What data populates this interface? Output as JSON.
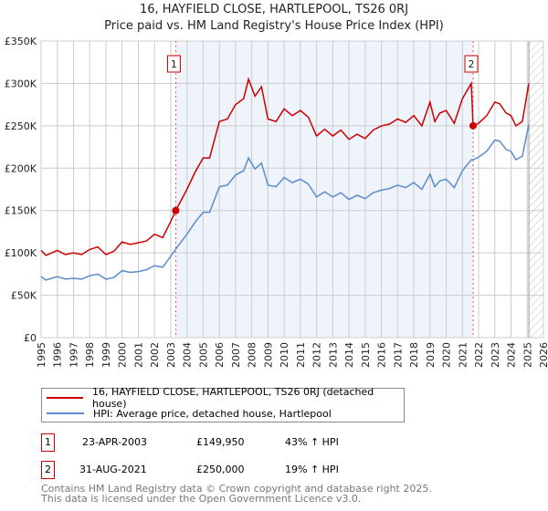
{
  "chart_data": {
    "type": "line",
    "title": "16, HAYFIELD CLOSE, HARTLEPOOL, TS26 0RJ",
    "subtitle": "Price paid vs. HM Land Registry's House Price Index (HPI)",
    "xlim": [
      1995,
      2026
    ],
    "ylim": [
      0,
      350000
    ],
    "y_ticks": [
      {
        "v": 0,
        "label": "£0"
      },
      {
        "v": 50000,
        "label": "£50K"
      },
      {
        "v": 100000,
        "label": "£100K"
      },
      {
        "v": 150000,
        "label": "£150K"
      },
      {
        "v": 200000,
        "label": "£200K"
      },
      {
        "v": 250000,
        "label": "£250K"
      },
      {
        "v": 300000,
        "label": "£300K"
      },
      {
        "v": 350000,
        "label": "£350K"
      }
    ],
    "x_ticks": [
      "1995",
      "1996",
      "1997",
      "1998",
      "1999",
      "2000",
      "2001",
      "2002",
      "2003",
      "2004",
      "2005",
      "2006",
      "2007",
      "2008",
      "2009",
      "2010",
      "2011",
      "2012",
      "2013",
      "2014",
      "2015",
      "2016",
      "2017",
      "2018",
      "2019",
      "2020",
      "2021",
      "2022",
      "2023",
      "2024",
      "2025",
      "2026"
    ],
    "grid": true,
    "shaded_range": [
      2003.31,
      2021.66
    ],
    "forecast_hatch_from": 2025.1,
    "series": [
      {
        "name": "16, HAYFIELD CLOSE, HARTLEPOOL, TS26 0RJ (detached house)",
        "color": "#cc0000",
        "x": [
          1995,
          1995.3,
          1996,
          1996.5,
          1997,
          1997.5,
          1998,
          1998.5,
          1999,
          1999.5,
          2000,
          2000.5,
          2001,
          2001.5,
          2002,
          2002.5,
          2003,
          2003.31,
          2003.31,
          2004,
          2004.5,
          2005,
          2005.4,
          2006,
          2006.5,
          2007,
          2007.5,
          2007.8,
          2008.2,
          2008.6,
          2009,
          2009.5,
          2010,
          2010.5,
          2011,
          2011.5,
          2012,
          2012.5,
          2013,
          2013.5,
          2014,
          2014.5,
          2015,
          2015.5,
          2016,
          2016.5,
          2017,
          2017.5,
          2018,
          2018.5,
          2019,
          2019.3,
          2019.6,
          2020,
          2020.5,
          2021,
          2021.55,
          2021.66,
          2022,
          2022.5,
          2023,
          2023.3,
          2023.7,
          2024,
          2024.3,
          2024.7,
          2025.1
        ],
        "y": [
          103000,
          97000,
          103000,
          98000,
          100000,
          98000,
          104000,
          107000,
          98000,
          102000,
          113000,
          110000,
          112000,
          114000,
          122000,
          118000,
          137000,
          149950,
          149950,
          175000,
          195000,
          212000,
          212000,
          255000,
          258000,
          275000,
          282000,
          305000,
          285000,
          296000,
          258000,
          255000,
          270000,
          262000,
          268000,
          260000,
          238000,
          246000,
          238000,
          245000,
          234000,
          240000,
          235000,
          245000,
          250000,
          252000,
          258000,
          254000,
          262000,
          250000,
          278000,
          255000,
          265000,
          268000,
          253000,
          282000,
          300000,
          250000,
          253000,
          262000,
          278000,
          276000,
          265000,
          262000,
          250000,
          255000,
          300000
        ]
      },
      {
        "name": "HPI: Average price, detached house, Hartlepool",
        "color": "#5b8ccc",
        "x": [
          1995,
          1995.3,
          1996,
          1996.5,
          1997,
          1997.5,
          1998,
          1998.5,
          1999,
          1999.5,
          2000,
          2000.5,
          2001,
          2001.5,
          2002,
          2002.5,
          2003,
          2003.31,
          2004,
          2004.5,
          2005,
          2005.4,
          2006,
          2006.5,
          2007,
          2007.5,
          2007.8,
          2008.2,
          2008.6,
          2009,
          2009.5,
          2010,
          2010.5,
          2011,
          2011.5,
          2012,
          2012.5,
          2013,
          2013.5,
          2014,
          2014.5,
          2015,
          2015.5,
          2016,
          2016.5,
          2017,
          2017.5,
          2018,
          2018.5,
          2019,
          2019.3,
          2019.6,
          2020,
          2020.5,
          2021,
          2021.55,
          2021.66,
          2022,
          2022.5,
          2023,
          2023.3,
          2023.7,
          2024,
          2024.3,
          2024.7,
          2025.1
        ],
        "y": [
          72000,
          68000,
          72000,
          69000,
          70000,
          69000,
          73000,
          75000,
          69000,
          71000,
          79000,
          77000,
          78000,
          80000,
          85000,
          83000,
          96000,
          104600,
          122000,
          136000,
          148000,
          148000,
          178000,
          180000,
          192000,
          197000,
          212000,
          199000,
          206000,
          180000,
          178000,
          189000,
          183000,
          187000,
          181000,
          166000,
          172000,
          166000,
          171000,
          163000,
          168000,
          164000,
          171000,
          174000,
          176000,
          180000,
          177000,
          183000,
          175000,
          193000,
          178000,
          185000,
          187000,
          177000,
          197000,
          210000,
          210000,
          213000,
          220000,
          233000,
          232000,
          222000,
          220000,
          210000,
          214000,
          252000
        ]
      }
    ],
    "annotations": [
      {
        "label": "1",
        "x": 2003.31,
        "y": 149950
      },
      {
        "label": "2",
        "x": 2021.66,
        "y": 250000
      }
    ]
  },
  "legend": {
    "red": "16, HAYFIELD CLOSE, HARTLEPOOL, TS26 0RJ (detached house)",
    "blue": "HPI: Average price, detached house, Hartlepool"
  },
  "transactions": [
    {
      "num": "1",
      "date": "23-APR-2003",
      "price": "£149,950",
      "hpi": "43% ↑ HPI"
    },
    {
      "num": "2",
      "date": "31-AUG-2021",
      "price": "£250,000",
      "hpi": "19% ↑ HPI"
    }
  ],
  "footer": {
    "line1": "Contains HM Land Registry data © Crown copyright and database right 2025.",
    "line2": "This data is licensed under the Open Government Licence v3.0."
  }
}
